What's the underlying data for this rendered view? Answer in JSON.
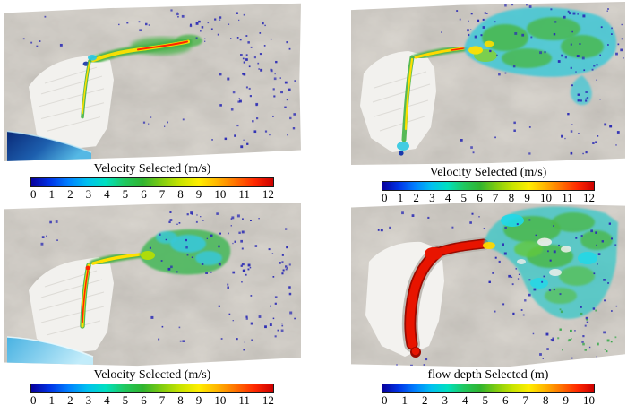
{
  "figure": {
    "panels": [
      {
        "id": "top-left",
        "variable": "velocity",
        "legend_title": "Velocity Selected (m/s)",
        "unit": "m/s",
        "min": 0,
        "max": 12,
        "ticks": [
          "0",
          "1",
          "2",
          "3",
          "4",
          "5",
          "6",
          "7",
          "8",
          "9",
          "10",
          "11",
          "12"
        ]
      },
      {
        "id": "top-right",
        "variable": "velocity",
        "legend_title": "Velocity Selected (m/s)",
        "unit": "m/s",
        "min": 0,
        "max": 12,
        "ticks": [
          "0",
          "1",
          "2",
          "3",
          "4",
          "5",
          "6",
          "7",
          "8",
          "9",
          "10",
          "11",
          "12"
        ]
      },
      {
        "id": "bottom-left",
        "variable": "velocity",
        "legend_title": "Velocity Selected (m/s)",
        "unit": "m/s",
        "min": 0,
        "max": 12,
        "ticks": [
          "0",
          "1",
          "2",
          "3",
          "4",
          "5",
          "6",
          "7",
          "8",
          "9",
          "10",
          "11",
          "12"
        ]
      },
      {
        "id": "bottom-right",
        "variable": "flow depth",
        "legend_title": "flow depth Selected (m)",
        "unit": "m",
        "min": 0,
        "max": 10,
        "ticks": [
          "0",
          "1",
          "2",
          "3",
          "4",
          "5",
          "6",
          "7",
          "8",
          "9",
          "10"
        ]
      }
    ],
    "colorbar_colors": [
      "#08009c",
      "#0033e6",
      "#0080ff",
      "#00c0f0",
      "#00e0c0",
      "#20c860",
      "#30b430",
      "#80cc10",
      "#c8e400",
      "#ffee00",
      "#ffb400",
      "#ff7000",
      "#ff2800",
      "#cc0000"
    ],
    "map_colors": {
      "terrain": "#aba69e",
      "white_deposit": "#f2f1ee",
      "water_dark": "#0a2a78",
      "water_light": "#49b2e2",
      "speckle_blue": "#2b2bb4",
      "flow_green": "#4db54d",
      "flow_cyan": "#35c8d8",
      "flow_yellow": "#ffe000",
      "flow_red": "#e11400"
    }
  },
  "chart_data": [
    {
      "type": "heatmap",
      "subtype": "flow-simulation-map",
      "position": "top-left",
      "title": "Velocity Selected (m/s)",
      "variable": "velocity",
      "unit": "m/s",
      "colorbar": {
        "label": "Velocity Selected (m/s)",
        "min": 0,
        "max": 12,
        "ticks": [
          0,
          1,
          2,
          3,
          4,
          5,
          6,
          7,
          8,
          9,
          10,
          11,
          12
        ],
        "colormap": "rainbow",
        "orientation": "horizontal"
      }
    },
    {
      "type": "heatmap",
      "subtype": "flow-simulation-map",
      "position": "top-right",
      "title": "Velocity Selected (m/s)",
      "variable": "velocity",
      "unit": "m/s",
      "colorbar": {
        "label": "Velocity Selected (m/s)",
        "min": 0,
        "max": 12,
        "ticks": [
          0,
          1,
          2,
          3,
          4,
          5,
          6,
          7,
          8,
          9,
          10,
          11,
          12
        ],
        "colormap": "rainbow",
        "orientation": "horizontal"
      }
    },
    {
      "type": "heatmap",
      "subtype": "flow-simulation-map",
      "position": "bottom-left",
      "title": "Velocity Selected (m/s)",
      "variable": "velocity",
      "unit": "m/s",
      "colorbar": {
        "label": "Velocity Selected (m/s)",
        "min": 0,
        "max": 12,
        "ticks": [
          0,
          1,
          2,
          3,
          4,
          5,
          6,
          7,
          8,
          9,
          10,
          11,
          12
        ],
        "colormap": "rainbow",
        "orientation": "horizontal"
      }
    },
    {
      "type": "heatmap",
      "subtype": "flow-simulation-map",
      "position": "bottom-right",
      "title": "flow depth Selected (m)",
      "variable": "flow depth",
      "unit": "m",
      "colorbar": {
        "label": "flow depth Selected (m)",
        "min": 0,
        "max": 10,
        "ticks": [
          0,
          1,
          2,
          3,
          4,
          5,
          6,
          7,
          8,
          9,
          10
        ],
        "colormap": "rainbow",
        "orientation": "horizontal"
      }
    }
  ]
}
